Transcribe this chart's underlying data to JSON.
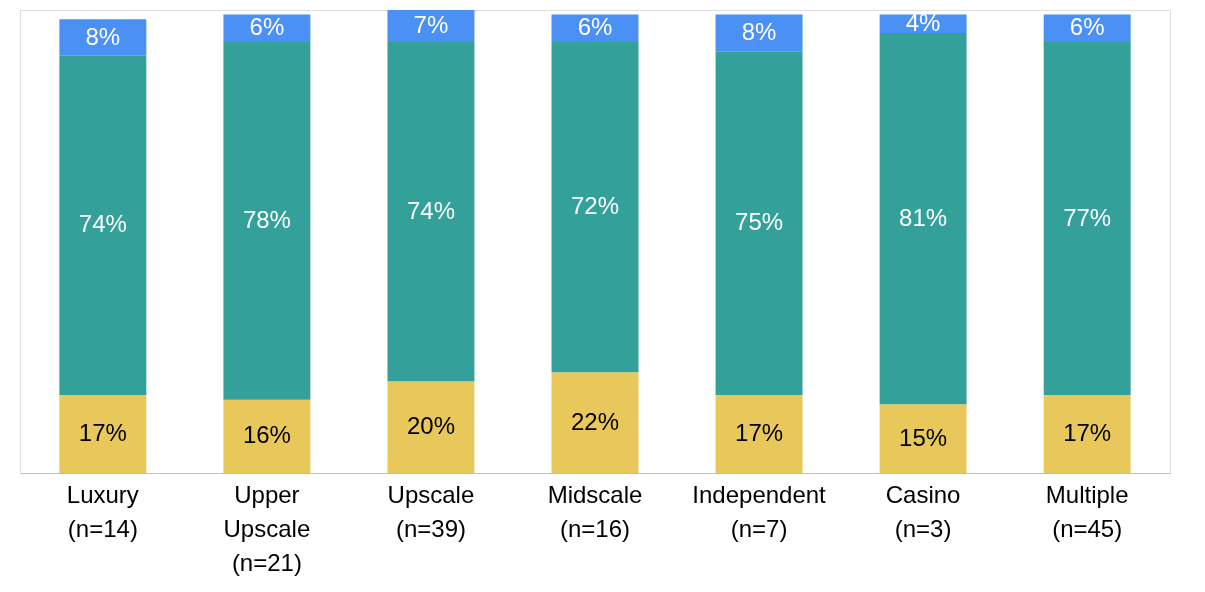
{
  "chart_data": {
    "type": "bar",
    "stacked": true,
    "categories": [
      "Luxury\n(n=14)",
      "Upper\nUpscale\n(n=21)",
      "Upscale\n(n=39)",
      "Midscale\n(n=16)",
      "Independent\n(n=7)",
      "Casino\n(n=3)",
      "Multiple\n(n=45)"
    ],
    "series": [
      {
        "color": "#e8c85a",
        "values": [
          17,
          16,
          20,
          22,
          17,
          15,
          17
        ],
        "value_labels": [
          "17%",
          "16%",
          "20%",
          "22%",
          "17%",
          "15%",
          "17%"
        ]
      },
      {
        "color": "#33a19a",
        "values": [
          74,
          78,
          74,
          72,
          75,
          81,
          77
        ],
        "value_labels": [
          "74%",
          "78%",
          "74%",
          "72%",
          "75%",
          "81%",
          "77%"
        ]
      },
      {
        "color": "#4a90f5",
        "values": [
          8,
          6,
          7,
          6,
          8,
          4,
          6
        ],
        "value_labels": [
          "8%",
          "6%",
          "7%",
          "6%",
          "8%",
          "4%",
          "6%"
        ]
      }
    ]
  }
}
